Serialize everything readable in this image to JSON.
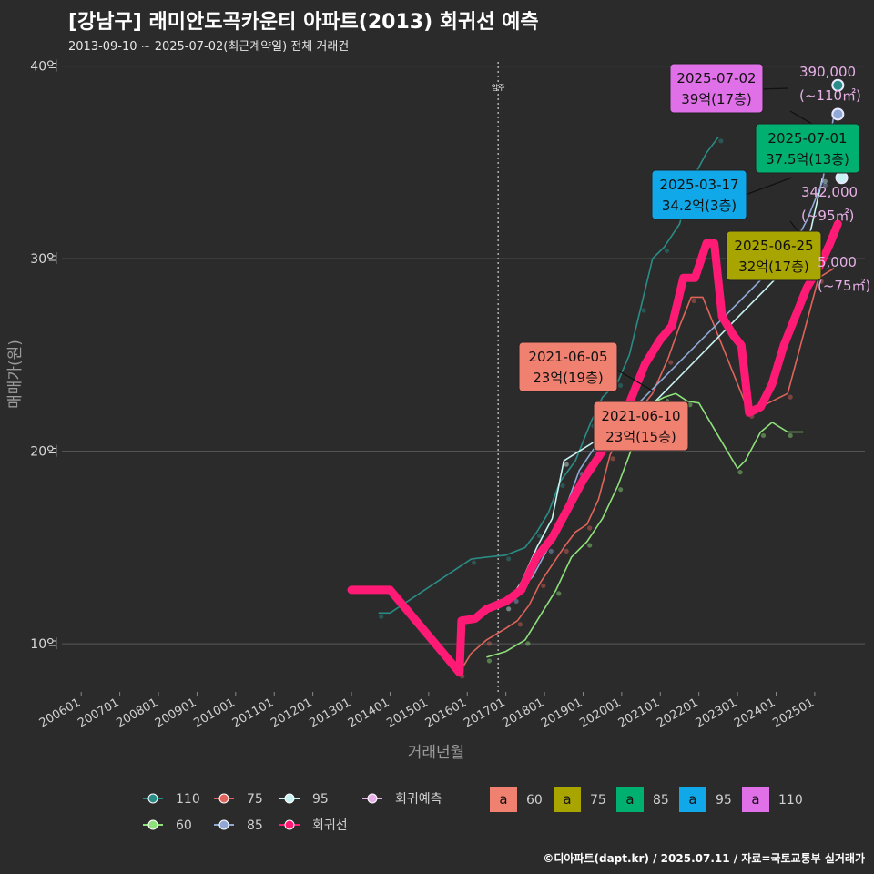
{
  "title": "[강남구] 래미안도곡카운티 아파트(2013) 회귀선 예측",
  "subtitle": "2013-09-10 ~ 2025-07-02(최근계약일) 전체 거래건",
  "footer": "©디아파트(dapt.kr) / 2025.07.11 / 자료=국토교통부 실거래가",
  "colors": {
    "background": "#2b2b2b",
    "s110": "#2a8c86",
    "s75": "#e0645b",
    "s95": "#c9f2f2",
    "s60": "#8ee07a",
    "s85": "#8fa8d6",
    "regression": "#ff1a75",
    "forecast": "#e8b0e8"
  },
  "chart_data": {
    "type": "line",
    "xlabel": "거래년월",
    "ylabel": "매매가(원)",
    "x_ticks": [
      "200601",
      "200701",
      "200801",
      "200901",
      "201001",
      "201101",
      "201201",
      "201301",
      "201401",
      "201501",
      "201601",
      "201701",
      "201801",
      "201901",
      "202001",
      "202101",
      "202201",
      "202301",
      "202401",
      "202501"
    ],
    "y_ticks": [
      {
        "value": 10,
        "label": "10억"
      },
      {
        "value": 20,
        "label": "20억"
      },
      {
        "value": 30,
        "label": "30억"
      },
      {
        "value": 40,
        "label": "40억"
      }
    ],
    "ylim": [
      7.5,
      40.5
    ],
    "xlim": [
      2005.5,
      2026.3
    ],
    "vline": {
      "x": 2016.8,
      "label": "입주"
    },
    "series": [
      {
        "name": "110",
        "color": "#2a8c86",
        "points": [
          [
            2013.7,
            11.6
          ],
          [
            2014.0,
            11.6
          ],
          [
            2016.1,
            14.4
          ],
          [
            2016.5,
            14.5
          ],
          [
            2017.0,
            14.6
          ],
          [
            2017.5,
            15.0
          ],
          [
            2017.8,
            15.8
          ],
          [
            2018.1,
            16.8
          ],
          [
            2018.4,
            18.4
          ],
          [
            2018.8,
            19.5
          ],
          [
            2019.2,
            21.5
          ],
          [
            2019.5,
            22.8
          ],
          [
            2019.9,
            23.6
          ],
          [
            2020.2,
            25.0
          ],
          [
            2020.5,
            27.5
          ],
          [
            2020.8,
            30.0
          ],
          [
            2021.1,
            30.6
          ],
          [
            2021.5,
            31.8
          ],
          [
            2021.8,
            34.0
          ],
          [
            2022.2,
            35.5
          ],
          [
            2022.5,
            36.3
          ]
        ]
      },
      {
        "name": "75",
        "color": "#e0645b",
        "points": [
          [
            2015.8,
            8.5
          ],
          [
            2016.1,
            9.5
          ],
          [
            2016.5,
            10.2
          ],
          [
            2017.0,
            10.8
          ],
          [
            2017.3,
            11.2
          ],
          [
            2017.6,
            12.0
          ],
          [
            2017.9,
            13.2
          ],
          [
            2018.2,
            14.1
          ],
          [
            2018.5,
            15.0
          ],
          [
            2018.8,
            15.8
          ],
          [
            2019.1,
            16.2
          ],
          [
            2019.4,
            17.5
          ],
          [
            2019.7,
            19.8
          ],
          [
            2020.0,
            21.0
          ],
          [
            2020.4,
            22.0
          ],
          [
            2020.8,
            23.0
          ],
          [
            2021.2,
            24.8
          ],
          [
            2021.5,
            26.5
          ],
          [
            2021.8,
            28.0
          ],
          [
            2022.1,
            28.0
          ],
          [
            2023.3,
            22.0
          ],
          [
            2023.8,
            22.5
          ],
          [
            2024.3,
            23.0
          ],
          [
            2024.7,
            26.0
          ],
          [
            2025.1,
            29.0
          ],
          [
            2025.5,
            29.5
          ]
        ]
      },
      {
        "name": "95",
        "color": "#c9f2f2",
        "points": [
          [
            2017.0,
            12.0
          ],
          [
            2017.4,
            13.2
          ],
          [
            2017.8,
            15.0
          ],
          [
            2018.2,
            16.5
          ],
          [
            2018.5,
            19.5
          ],
          [
            2018.9,
            20.0
          ],
          [
            2019.3,
            20.5
          ],
          [
            2019.8,
            20.4
          ],
          [
            2024.5,
            30.0
          ],
          [
            2024.9,
            31.5
          ],
          [
            2025.2,
            34.2
          ]
        ]
      },
      {
        "name": "60",
        "color": "#8ee07a",
        "points": [
          [
            2016.5,
            9.3
          ],
          [
            2017.0,
            9.6
          ],
          [
            2017.5,
            10.2
          ],
          [
            2017.9,
            11.5
          ],
          [
            2018.3,
            12.8
          ],
          [
            2018.7,
            14.5
          ],
          [
            2019.1,
            15.3
          ],
          [
            2019.5,
            16.5
          ],
          [
            2019.9,
            18.2
          ],
          [
            2020.2,
            19.8
          ],
          [
            2020.5,
            21.5
          ],
          [
            2020.8,
            22.5
          ],
          [
            2021.1,
            22.8
          ],
          [
            2021.4,
            23.0
          ],
          [
            2021.7,
            22.6
          ],
          [
            2022.0,
            22.5
          ],
          [
            2023.0,
            19.1
          ],
          [
            2023.2,
            19.5
          ],
          [
            2023.6,
            21.0
          ],
          [
            2023.9,
            21.5
          ],
          [
            2024.3,
            21.0
          ],
          [
            2024.7,
            21.0
          ]
        ]
      },
      {
        "name": "85",
        "color": "#8fa8d6",
        "points": [
          [
            2017.2,
            12.4
          ],
          [
            2017.7,
            13.5
          ],
          [
            2018.1,
            15.0
          ],
          [
            2018.5,
            16.8
          ],
          [
            2018.9,
            19.0
          ],
          [
            2019.3,
            20.2
          ],
          [
            2024.4,
            30.5
          ],
          [
            2024.8,
            32.0
          ],
          [
            2025.2,
            34.0
          ],
          [
            2025.5,
            37.5
          ]
        ]
      }
    ],
    "regression": {
      "name": "회귀선",
      "color": "#ff1a75",
      "points": [
        [
          2013.0,
          12.8
        ],
        [
          2014.0,
          12.8
        ],
        [
          2015.8,
          8.5
        ],
        [
          2015.85,
          11.2
        ],
        [
          2016.2,
          11.3
        ],
        [
          2016.5,
          11.8
        ],
        [
          2017.0,
          12.2
        ],
        [
          2017.4,
          12.8
        ],
        [
          2017.8,
          14.5
        ],
        [
          2018.2,
          15.5
        ],
        [
          2018.6,
          17.0
        ],
        [
          2019.0,
          18.5
        ],
        [
          2019.4,
          19.7
        ],
        [
          2019.8,
          21.0
        ],
        [
          2020.2,
          22.5
        ],
        [
          2020.6,
          24.5
        ],
        [
          2021.0,
          25.8
        ],
        [
          2021.3,
          26.5
        ],
        [
          2021.6,
          29.0
        ],
        [
          2021.9,
          29.0
        ],
        [
          2022.2,
          30.8
        ],
        [
          2022.4,
          30.8
        ],
        [
          2022.6,
          27.0
        ],
        [
          2022.9,
          26.0
        ],
        [
          2023.1,
          25.5
        ],
        [
          2023.3,
          22.0
        ],
        [
          2023.6,
          22.3
        ],
        [
          2023.9,
          23.5
        ],
        [
          2024.2,
          25.5
        ],
        [
          2024.5,
          27.0
        ],
        [
          2024.8,
          28.5
        ],
        [
          2025.1,
          29.5
        ],
        [
          2025.4,
          30.8
        ],
        [
          2025.6,
          31.8
        ]
      ]
    },
    "forecast_points": [
      {
        "x": 2025.6,
        "y": 39.0,
        "color": "#2a8c86"
      },
      {
        "x": 2025.6,
        "y": 37.5,
        "color": "#8fa8d6"
      },
      {
        "x": 2025.7,
        "y": 34.2,
        "color": "#c9f2f2"
      }
    ],
    "annotations": [
      {
        "date": "2025-07-02",
        "price": "39억(17층)",
        "bg": "#e070e8",
        "x": 2025.6,
        "y": 39.0
      },
      {
        "date": "2025-07-01",
        "price": "37.5억(13층)",
        "bg": "#00b070",
        "x": 2025.55,
        "y": 37.5
      },
      {
        "date": "2025-03-17",
        "price": "34.2억(3층)",
        "bg": "#10a8e8",
        "x": 2025.2,
        "y": 34.2
      },
      {
        "date": "2025-06-25",
        "price": "32억(17층)",
        "bg": "#a8a400",
        "x": 2025.5,
        "y": 32.0
      },
      {
        "date": "2021-06-05",
        "price": "23억(19층)",
        "bg": "#f08070",
        "x": 2021.4,
        "y": 23.0
      },
      {
        "date": "2021-06-10",
        "price": "23억(15층)",
        "bg": "#f08070",
        "x": 2021.4,
        "y": 23.0
      }
    ],
    "forecast_labels": [
      {
        "value": "390,000",
        "area": "(~110㎡)"
      },
      {
        "value": "342,000",
        "area": "(~95㎡)"
      },
      {
        "value": "5,000",
        "area": "(~75㎡)"
      }
    ],
    "legend": {
      "line_items": [
        {
          "label": "110",
          "color": "#2a8c86"
        },
        {
          "label": "75",
          "color": "#e0645b"
        },
        {
          "label": "95",
          "color": "#c9f2f2"
        },
        {
          "label": "회귀예측",
          "color": "#e8b0e8"
        },
        {
          "label": "60",
          "color": "#8ee07a"
        },
        {
          "label": "85",
          "color": "#8fa8d6"
        },
        {
          "label": "회귀선",
          "color": "#ff1a75"
        }
      ],
      "box_glyph": "a",
      "box_items": [
        {
          "label": "60",
          "color": "#f08070"
        },
        {
          "label": "75",
          "color": "#a8a400"
        },
        {
          "label": "85",
          "color": "#00b070"
        },
        {
          "label": "95",
          "color": "#10a8e8"
        },
        {
          "label": "110",
          "color": "#e070e8"
        }
      ]
    }
  }
}
